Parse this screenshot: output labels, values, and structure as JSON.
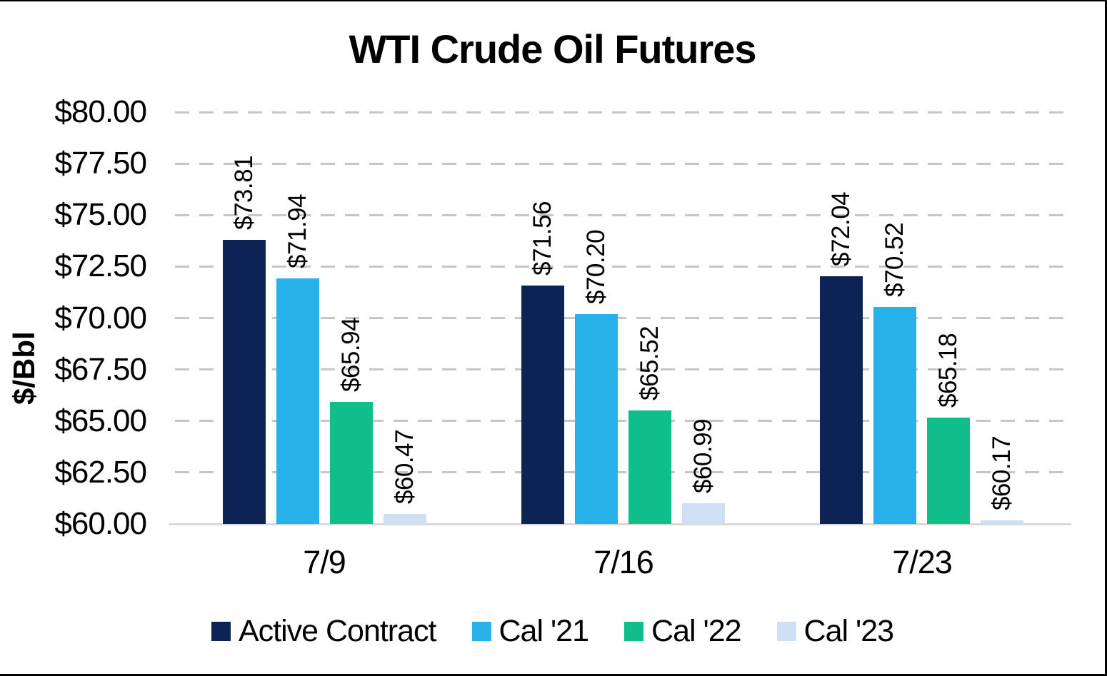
{
  "chart_data": {
    "type": "bar",
    "title": "WTI Crude Oil Futures",
    "ylabel": "$/Bbl",
    "xlabel": "",
    "categories": [
      "7/9",
      "7/16",
      "7/23"
    ],
    "series": [
      {
        "name": "Active Contract",
        "color": "#0d2356",
        "values": [
          73.81,
          71.56,
          72.04
        ]
      },
      {
        "name": "Cal '21",
        "color": "#27b2e9",
        "values": [
          71.94,
          70.2,
          70.52
        ]
      },
      {
        "name": "Cal '22",
        "color": "#0fbe8b",
        "values": [
          65.94,
          65.52,
          65.18
        ]
      },
      {
        "name": "Cal '23",
        "color": "#cfe0f4",
        "values": [
          60.47,
          60.99,
          60.17
        ]
      }
    ],
    "data_labels": [
      [
        "$73.81",
        "$71.56",
        "$72.04"
      ],
      [
        "$71.94",
        "$70.20",
        "$70.52"
      ],
      [
        "$65.94",
        "$65.52",
        "$65.18"
      ],
      [
        "$60.47",
        "$60.99",
        "$60.17"
      ]
    ],
    "data_labels_rotated": true,
    "ylim": [
      60,
      80
    ],
    "ytick_step": 2.5,
    "ytick_labels": [
      "$80.00",
      "$77.50",
      "$75.00",
      "$72.50",
      "$70.00",
      "$67.50",
      "$65.00",
      "$62.50",
      "$60.00"
    ],
    "grid": "horizontal-dashed",
    "legend_position": "bottom"
  }
}
